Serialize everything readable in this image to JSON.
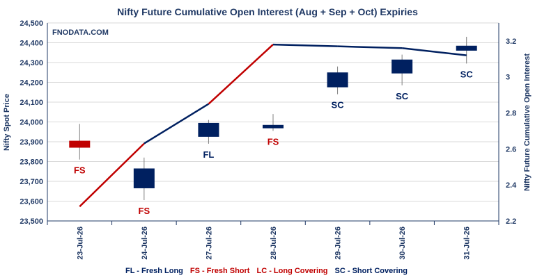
{
  "chart_data": {
    "type": "candlestick+line",
    "title": "Nifty Future Cumulative Open Interest (Aug + Sep + Oct) Expiries",
    "watermark": "FNODATA.COM",
    "ylabel": "Nifty Spot Price",
    "y2label": "Nifty Future Cumulative Open Interest",
    "ylim": [
      23500,
      24500
    ],
    "y2lim": [
      2.2,
      3.3
    ],
    "yticks": [
      "23,500",
      "23,600",
      "23,700",
      "23,800",
      "23,900",
      "24,000",
      "24,100",
      "24,200",
      "24,300",
      "24,400",
      "24,500"
    ],
    "y2ticks": [
      "2.2",
      "2.4",
      "2.6",
      "2.8",
      "3",
      "3.2"
    ],
    "categories": [
      "23-Jul-26",
      "24-Jul-26",
      "27-Jul-26",
      "28-Jul-26",
      "29-Jul-26",
      "30-Jul-26",
      "31-Jul-26"
    ],
    "candles": [
      {
        "open": 23905,
        "close": 23870,
        "high": 23990,
        "low": 23810,
        "color": "#c00000"
      },
      {
        "open": 23765,
        "close": 23665,
        "high": 23820,
        "low": 23605,
        "color": "#002060"
      },
      {
        "open": 23995,
        "close": 23925,
        "high": 24010,
        "low": 23890,
        "color": "#002060"
      },
      {
        "open": 23985,
        "close": 23968,
        "high": 24040,
        "low": 23955,
        "color": "#002060"
      },
      {
        "open": 24250,
        "close": 24175,
        "high": 24280,
        "low": 24140,
        "color": "#002060"
      },
      {
        "open": 24315,
        "close": 24245,
        "high": 24340,
        "low": 24185,
        "color": "#002060"
      },
      {
        "open": 24385,
        "close": 24360,
        "high": 24430,
        "low": 24295,
        "color": "#002060"
      }
    ],
    "oi_series": [
      {
        "x": 0,
        "y": 2.28,
        "color": "#c00000"
      },
      {
        "x": 1,
        "y": 2.63,
        "color": "#002060"
      },
      {
        "x": 2,
        "y": 2.85,
        "color": "#c00000"
      },
      {
        "x": 3,
        "y": 3.18,
        "color": "#002060"
      },
      {
        "x": 4,
        "y": 3.17,
        "color": "#002060"
      },
      {
        "x": 5,
        "y": 3.16,
        "color": "#002060"
      },
      {
        "x": 6,
        "y": 3.12,
        "color": "#002060"
      }
    ],
    "annotations": [
      {
        "label": "FS",
        "color": "#c00000"
      },
      {
        "label": "FS",
        "color": "#c00000"
      },
      {
        "label": "FL",
        "color": "#002060"
      },
      {
        "label": "FS",
        "color": "#c00000"
      },
      {
        "label": "SC",
        "color": "#002060"
      },
      {
        "label": "SC",
        "color": "#002060"
      },
      {
        "label": "SC",
        "color": "#002060"
      }
    ],
    "legend": [
      {
        "text": "FL - Fresh Long",
        "color": "#002060"
      },
      {
        "text": "FS - Fresh Short",
        "color": "#c00000"
      },
      {
        "text": "LC - Long Covering",
        "color": "#c00000"
      },
      {
        "text": "SC - Short Covering",
        "color": "#002060"
      }
    ],
    "grid": true,
    "legend_position": "bottom"
  }
}
